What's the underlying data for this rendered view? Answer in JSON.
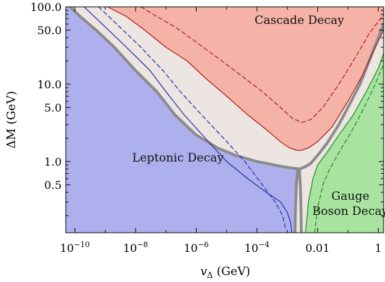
{
  "chart_data": {
    "type": "area",
    "title": "",
    "xlabel": "v_Δ (GeV)",
    "ylabel": "ΔM (GeV)",
    "x_scale": "log",
    "y_scale": "log",
    "xlim": [
      5e-11,
      1.5
    ],
    "ylim": [
      0.12,
      100
    ],
    "x_ticks": [
      {
        "value": 1e-10,
        "label": "10",
        "exp": "−10"
      },
      {
        "value": 1e-08,
        "label": "10",
        "exp": "−8"
      },
      {
        "value": 1e-06,
        "label": "10",
        "exp": "−6"
      },
      {
        "value": 0.0001,
        "label": "10",
        "exp": "−4"
      },
      {
        "value": 0.01,
        "label": "0.01",
        "exp": ""
      },
      {
        "value": 1,
        "label": "1",
        "exp": ""
      }
    ],
    "y_ticks": [
      {
        "value": 100,
        "label": "100.0"
      },
      {
        "value": 50,
        "label": "50.0"
      },
      {
        "value": 10,
        "label": "10.0"
      },
      {
        "value": 5,
        "label": "5.0"
      },
      {
        "value": 1,
        "label": "1.0"
      },
      {
        "value": 0.5,
        "label": "0.5"
      }
    ],
    "regions": [
      {
        "label": "Leptonic Decay",
        "color": "#aeb0ee",
        "label_lines": [
          "Leptonic Decay"
        ]
      },
      {
        "label": "Cascade Decay",
        "color": "#f4b3a6",
        "label_lines": [
          "Cascade Decay"
        ]
      },
      {
        "label": "Gauge Boson Decay",
        "color": "#a8e4a0",
        "label_lines": [
          "Gauge",
          "Boson Decay"
        ]
      }
    ],
    "series": [
      {
        "color": "#8a8a8a",
        "x": [
          7e-11,
          1.5e-10,
          5e-10,
          2e-09,
          1e-08,
          5e-08,
          2e-07,
          1e-06,
          5e-06,
          2e-05,
          0.0001,
          0.0003,
          0.0006,
          0.001,
          0.0015,
          0.002,
          0.0025
        ],
        "y": [
          100,
          75,
          50,
          30,
          15,
          8,
          4,
          2.2,
          1.5,
          1.2,
          1.0,
          0.92,
          0.87,
          0.84,
          0.82,
          0.81,
          0.8
        ]
      },
      {
        "color": "#8a8a8a",
        "x": [
          0.0025,
          0.003,
          0.004,
          0.006,
          0.01,
          0.02,
          0.05,
          0.1,
          0.25,
          0.5,
          1.0,
          1.5
        ],
        "y": [
          0.8,
          0.82,
          0.86,
          0.95,
          1.2,
          1.7,
          3,
          5,
          10,
          20,
          40,
          60
        ]
      },
      {
        "color": "#8a8a8a",
        "x": [
          0.0022,
          0.002,
          0.0019,
          0.00185,
          0.0018
        ],
        "y": [
          0.8,
          0.5,
          0.3,
          0.2,
          0.12
        ]
      },
      {
        "color": "#8a8a8a",
        "x": [
          0.0025,
          0.0027,
          0.0028,
          0.00285,
          0.0029
        ],
        "y": [
          0.8,
          0.5,
          0.3,
          0.2,
          0.12
        ]
      },
      {
        "color": "#1f2aa8",
        "x": [
          2e-10,
          1e-09,
          5e-09,
          3e-08,
          1e-07,
          4e-07,
          2e-06,
          1e-05,
          5e-05,
          0.0002,
          0.0006,
          0.001,
          0.0013,
          0.0014
        ],
        "y": [
          100,
          55,
          30,
          15,
          8,
          4,
          2,
          1.0,
          0.6,
          0.4,
          0.3,
          0.22,
          0.16,
          0.12
        ]
      },
      {
        "color": "#1f2aa8",
        "dash": true,
        "x": [
          6e-10,
          3e-09,
          1.5e-08,
          8e-08,
          3e-07,
          1.5e-06,
          8e-06,
          4e-05,
          0.00015,
          0.0004,
          0.0007,
          0.0009
        ],
        "y": [
          100,
          55,
          30,
          15,
          8,
          4,
          2,
          1.0,
          0.5,
          0.3,
          0.2,
          0.13
        ]
      },
      {
        "color": "#b01818",
        "x": [
          1.2e-09,
          5e-09,
          2e-08,
          1e-07,
          5e-07,
          2e-06,
          1e-05,
          5e-05,
          0.0002,
          0.0006,
          0.0012,
          0.002,
          0.003,
          0.005,
          0.01,
          0.03,
          0.1,
          0.3,
          0.8,
          1.5
        ],
        "y": [
          100,
          75,
          50,
          30,
          20,
          12,
          7,
          4,
          2.6,
          1.8,
          1.5,
          1.4,
          1.4,
          1.5,
          1.8,
          2.8,
          6,
          13,
          30,
          50
        ]
      },
      {
        "color": "#b01818",
        "dash": true,
        "x": [
          1.5e-08,
          5e-08,
          2e-07,
          1e-06,
          5e-06,
          3e-05,
          0.00015,
          0.0006,
          0.0015,
          0.003,
          0.006,
          0.015,
          0.05,
          0.15,
          0.5,
          1.5
        ],
        "y": [
          100,
          75,
          55,
          35,
          22,
          13,
          8,
          5,
          3.6,
          3.2,
          3.5,
          5,
          10,
          20,
          45,
          80
        ]
      },
      {
        "color": "#1a8a1a",
        "x": [
          0.004,
          0.005,
          0.007,
          0.01,
          0.02,
          0.05,
          0.15,
          0.4,
          1.0,
          1.5
        ],
        "y": [
          0.12,
          0.3,
          0.6,
          0.9,
          1.3,
          2.2,
          4,
          8,
          16,
          25
        ]
      },
      {
        "color": "#1a8a1a",
        "dash": true,
        "x": [
          0.008,
          0.01,
          0.015,
          0.025,
          0.05,
          0.12,
          0.3,
          0.7,
          1.5
        ],
        "y": [
          0.12,
          0.25,
          0.5,
          0.8,
          1.3,
          2.3,
          4.5,
          9,
          18
        ]
      }
    ]
  }
}
